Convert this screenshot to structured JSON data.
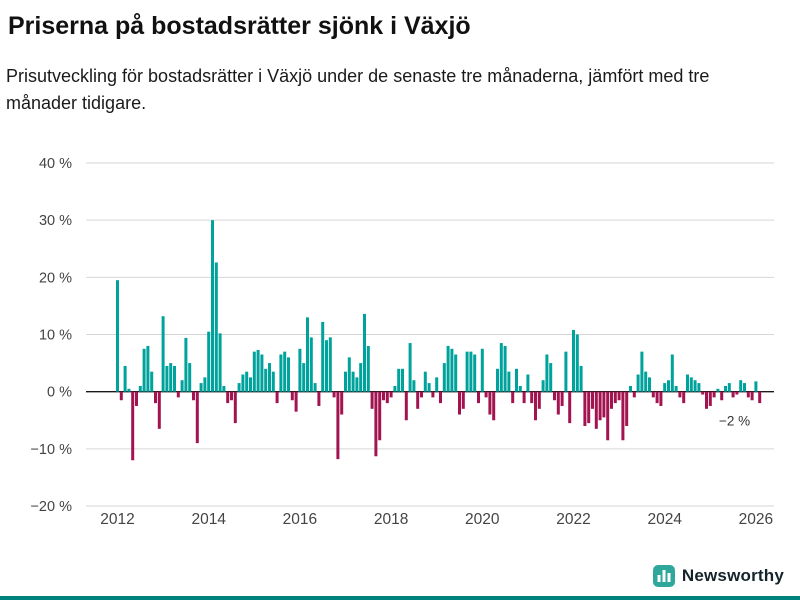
{
  "title": "Priserna på bostadsrätter sjönk i Växjö",
  "subtitle": "Prisutveckling för bostadsrätter i Växjö under de senaste tre månaderna, jämfört med tre månader tidigare.",
  "footer": {
    "brand": "Newsworthy"
  },
  "colors": {
    "positive": "#00a29c",
    "negative": "#a3134f",
    "zero_line": "#1a1a1a",
    "gridline": "#d6d6d6",
    "tick_text": "#444444",
    "annotation_text": "#333333",
    "brand_teal": "#2fa89b",
    "bottom_strip": "#00837c"
  },
  "chart_data": {
    "type": "bar",
    "title": "Priserna på bostadsrätter sjönk i Växjö",
    "xlabel": "",
    "ylabel": "",
    "x_start": "2012-01",
    "x_interval": "month",
    "values": [
      19.5,
      -1.5,
      4.5,
      0.5,
      -12,
      -2.5,
      1,
      7.5,
      8,
      3.5,
      -2,
      -6.5,
      13.2,
      4.5,
      5,
      4.5,
      -1,
      2,
      9.4,
      5,
      -1.5,
      -9,
      1.5,
      2.5,
      10.5,
      30,
      22.6,
      10.2,
      1,
      -2,
      -1.5,
      -5.5,
      1.5,
      3,
      3.5,
      2.5,
      7,
      7.3,
      6.5,
      4,
      5,
      3.5,
      -2,
      6.5,
      7,
      6,
      -1.5,
      -3.5,
      7.5,
      5,
      13,
      9.5,
      1.5,
      -2.5,
      12.2,
      9,
      9.5,
      -1,
      -11.8,
      -4,
      3.5,
      6,
      3.5,
      2.5,
      5,
      13.6,
      8,
      -3,
      -11.3,
      -8.5,
      -1.5,
      -2,
      -1,
      1,
      4,
      4,
      -5,
      8.5,
      2,
      -3,
      -1,
      3.5,
      1.5,
      -1,
      2.5,
      -2,
      5,
      8,
      7.5,
      6.5,
      -4,
      -3,
      7,
      7,
      6.5,
      -2,
      7.5,
      -1,
      -4,
      -5,
      4,
      8.5,
      8,
      3.5,
      -2,
      4,
      1,
      -2,
      3,
      -2,
      -5,
      -3,
      2,
      6.5,
      5,
      -1.5,
      -4,
      -2.5,
      7,
      -5.5,
      10.8,
      10,
      4.5,
      -6,
      -5.5,
      -3,
      -6.5,
      -5,
      -4.5,
      -8.5,
      -3,
      -2,
      -1.5,
      -8.5,
      -6,
      1,
      -1,
      3,
      7,
      3.5,
      2.5,
      -1,
      -2,
      -2.5,
      1.5,
      2,
      6.5,
      1,
      -1,
      -2,
      3,
      2.5,
      2,
      1.5,
      -0.5,
      -3,
      -2.5,
      -1,
      0.5,
      -1.5,
      1,
      1.5,
      -1,
      -0.5,
      2,
      1.5,
      -1,
      -1.5,
      1.8,
      -2
    ],
    "ylim": [
      -20,
      40
    ],
    "yticks": [
      40,
      30,
      20,
      10,
      0,
      -10,
      -20
    ],
    "ytick_labels": [
      "40 %",
      "30 %",
      "20 %",
      "10 %",
      "0 %",
      "−10 %",
      "−20 %"
    ],
    "xticks": [
      2012,
      2014,
      2016,
      2018,
      2020,
      2022,
      2024,
      2026
    ],
    "grid": "horizontal",
    "legend": "none",
    "annotation": {
      "text": "−2 %"
    }
  }
}
